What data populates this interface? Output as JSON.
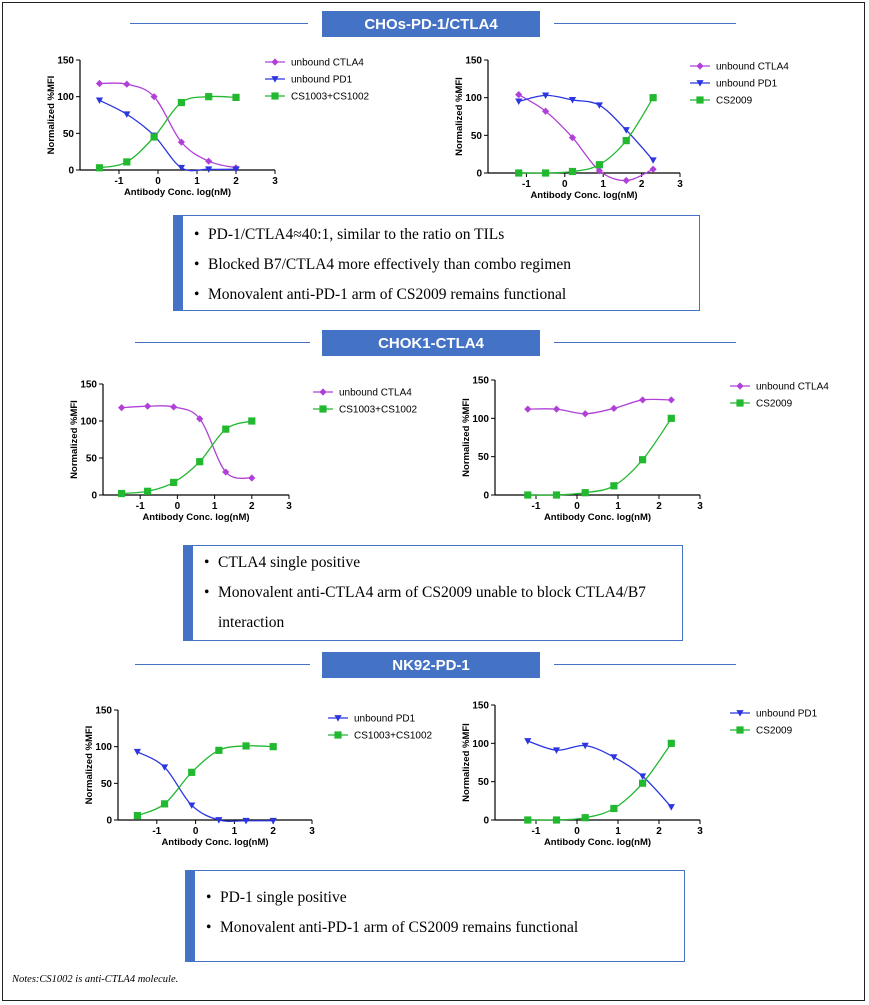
{
  "sections": [
    {
      "title": "CHOs-PD-1/CTLA4",
      "notes": [
        "PD-1/CTLA4≈40:1, similar to the ratio on TILs",
        "Blocked B7/CTLA4 more effectively than combo regimen",
        "Monovalent anti-PD-1 arm of CS2009 remains functional"
      ]
    },
    {
      "title": "CHOK1-CTLA4",
      "notes": [
        "CTLA4 single positive",
        "Monovalent anti-CTLA4 arm of CS2009 unable to block CTLA4/B7 interaction"
      ]
    },
    {
      "title": "NK92-PD-1",
      "notes": [
        "PD-1 single positive",
        "Monovalent anti-PD-1 arm of CS2009 remains functional"
      ]
    }
  ],
  "footnote": "Notes:CS1002 is anti-CTLA4 molecule.",
  "colors": {
    "accent": "#4472c4",
    "ctla4": "#b040d8",
    "pd1": "#2b35e0",
    "green": "#22b830"
  },
  "chart_data": [
    {
      "type": "scatter",
      "xlabel": "Antibody Conc. log(nM)",
      "ylabel": "Normalized %MFI",
      "xlim": [
        -2,
        3
      ],
      "ylim": [
        0,
        150
      ],
      "xticks": [
        -1,
        0,
        1,
        2,
        3
      ],
      "yticks": [
        0,
        50,
        100,
        150
      ],
      "legend_placement": "right",
      "series": [
        {
          "name": "unbound CTLA4",
          "marker": "diamond",
          "color": "#b040d8",
          "x": [
            -1.5,
            -0.8,
            -0.1,
            0.6,
            1.3,
            2.0
          ],
          "y": [
            118,
            117,
            100,
            38,
            12,
            3
          ]
        },
        {
          "name": "unbound PD1",
          "marker": "triangle-down",
          "color": "#2b35e0",
          "x": [
            -1.5,
            -0.8,
            -0.1,
            0.6,
            1.3,
            2.0
          ],
          "y": [
            95,
            76,
            47,
            3,
            1,
            1
          ]
        },
        {
          "name": "CS1003+CS1002",
          "marker": "square",
          "color": "#22b830",
          "x": [
            -1.5,
            -0.8,
            -0.1,
            0.6,
            1.3,
            2.0
          ],
          "y": [
            3,
            11,
            45,
            92,
            100,
            99
          ]
        }
      ]
    },
    {
      "type": "scatter",
      "xlabel": "Antibody Conc. log(nM)",
      "ylabel": "Normalized %MFI",
      "xlim": [
        -2,
        3
      ],
      "ylim": [
        0,
        150
      ],
      "xticks": [
        -1,
        0,
        1,
        2,
        3
      ],
      "yticks": [
        0,
        50,
        100,
        150
      ],
      "legend_placement": "right",
      "series": [
        {
          "name": "unbound CTLA4",
          "marker": "diamond",
          "color": "#b040d8",
          "x": [
            -1.2,
            -0.5,
            0.2,
            0.9,
            1.6,
            2.3
          ],
          "y": [
            104,
            82,
            47,
            3,
            -10,
            5
          ]
        },
        {
          "name": "unbound PD1",
          "marker": "triangle-down",
          "color": "#2b35e0",
          "x": [
            -1.2,
            -0.5,
            0.2,
            0.9,
            1.6,
            2.3
          ],
          "y": [
            95,
            103,
            97,
            90,
            57,
            17
          ]
        },
        {
          "name": "CS2009",
          "marker": "square",
          "color": "#22b830",
          "x": [
            -1.2,
            -0.5,
            0.2,
            0.9,
            1.6,
            2.3
          ],
          "y": [
            0,
            0,
            2,
            11,
            43,
            100
          ]
        }
      ]
    },
    {
      "type": "scatter",
      "xlabel": "Antibody Conc. log(nM)",
      "ylabel": "Normalized %MFI",
      "xlim": [
        -2,
        3
      ],
      "ylim": [
        0,
        150
      ],
      "xticks": [
        -1,
        0,
        1,
        2,
        3
      ],
      "yticks": [
        0,
        50,
        100,
        150
      ],
      "legend_placement": "right",
      "series": [
        {
          "name": "unbound CTLA4",
          "marker": "diamond",
          "color": "#b040d8",
          "x": [
            -1.5,
            -0.8,
            -0.1,
            0.6,
            1.3,
            2.0
          ],
          "y": [
            118,
            120,
            119,
            103,
            31,
            23
          ]
        },
        {
          "name": "CS1003+CS1002",
          "marker": "square",
          "color": "#22b830",
          "x": [
            -1.5,
            -0.8,
            -0.1,
            0.6,
            1.3,
            2.0
          ],
          "y": [
            2,
            5,
            17,
            45,
            89,
            100
          ]
        }
      ]
    },
    {
      "type": "scatter",
      "xlabel": "Antibody Conc. log(nM)",
      "ylabel": "Normalized %MFI",
      "xlim": [
        -2,
        3
      ],
      "ylim": [
        0,
        150
      ],
      "xticks": [
        -1,
        0,
        1,
        2,
        3
      ],
      "yticks": [
        0,
        50,
        100,
        150
      ],
      "legend_placement": "right",
      "series": [
        {
          "name": "unbound CTLA4",
          "marker": "diamond",
          "color": "#b040d8",
          "x": [
            -1.2,
            -0.5,
            0.2,
            0.9,
            1.6,
            2.3
          ],
          "y": [
            112,
            112,
            106,
            113,
            124,
            124
          ]
        },
        {
          "name": "CS2009",
          "marker": "square",
          "color": "#22b830",
          "x": [
            -1.2,
            -0.5,
            0.2,
            0.9,
            1.6,
            2.3
          ],
          "y": [
            0,
            0,
            3,
            12,
            46,
            100
          ]
        }
      ]
    },
    {
      "type": "scatter",
      "xlabel": "Antibody Conc. log(nM)",
      "ylabel": "Normalized %MFI",
      "xlim": [
        -2,
        3
      ],
      "ylim": [
        0,
        150
      ],
      "xticks": [
        -1,
        0,
        1,
        2,
        3
      ],
      "yticks": [
        0,
        50,
        100,
        150
      ],
      "legend_placement": "right",
      "series": [
        {
          "name": "unbound PD1",
          "marker": "triangle-down",
          "color": "#2b35e0",
          "x": [
            -1.5,
            -0.8,
            -0.1,
            0.6,
            1.3,
            2.0
          ],
          "y": [
            93,
            72,
            20,
            0,
            -1,
            -1
          ]
        },
        {
          "name": "CS1003+CS1002",
          "marker": "square",
          "color": "#22b830",
          "x": [
            -1.5,
            -0.8,
            -0.1,
            0.6,
            1.3,
            2.0
          ],
          "y": [
            6,
            22,
            65,
            95,
            101,
            100
          ]
        }
      ]
    },
    {
      "type": "scatter",
      "xlabel": "Antibody Conc. log(nM)",
      "ylabel": "Normalized %MFI",
      "xlim": [
        -2,
        3
      ],
      "ylim": [
        0,
        150
      ],
      "xticks": [
        -1,
        0,
        1,
        2,
        3
      ],
      "yticks": [
        0,
        50,
        100,
        150
      ],
      "legend_placement": "right",
      "series": [
        {
          "name": "unbound PD1",
          "marker": "triangle-down",
          "color": "#2b35e0",
          "x": [
            -1.2,
            -0.5,
            0.2,
            0.9,
            1.6,
            2.3
          ],
          "y": [
            103,
            91,
            97,
            82,
            57,
            17
          ]
        },
        {
          "name": "CS2009",
          "marker": "square",
          "color": "#22b830",
          "x": [
            -1.2,
            -0.5,
            0.2,
            0.9,
            1.6,
            2.3
          ],
          "y": [
            0,
            0,
            3,
            15,
            48,
            100
          ]
        }
      ]
    }
  ]
}
